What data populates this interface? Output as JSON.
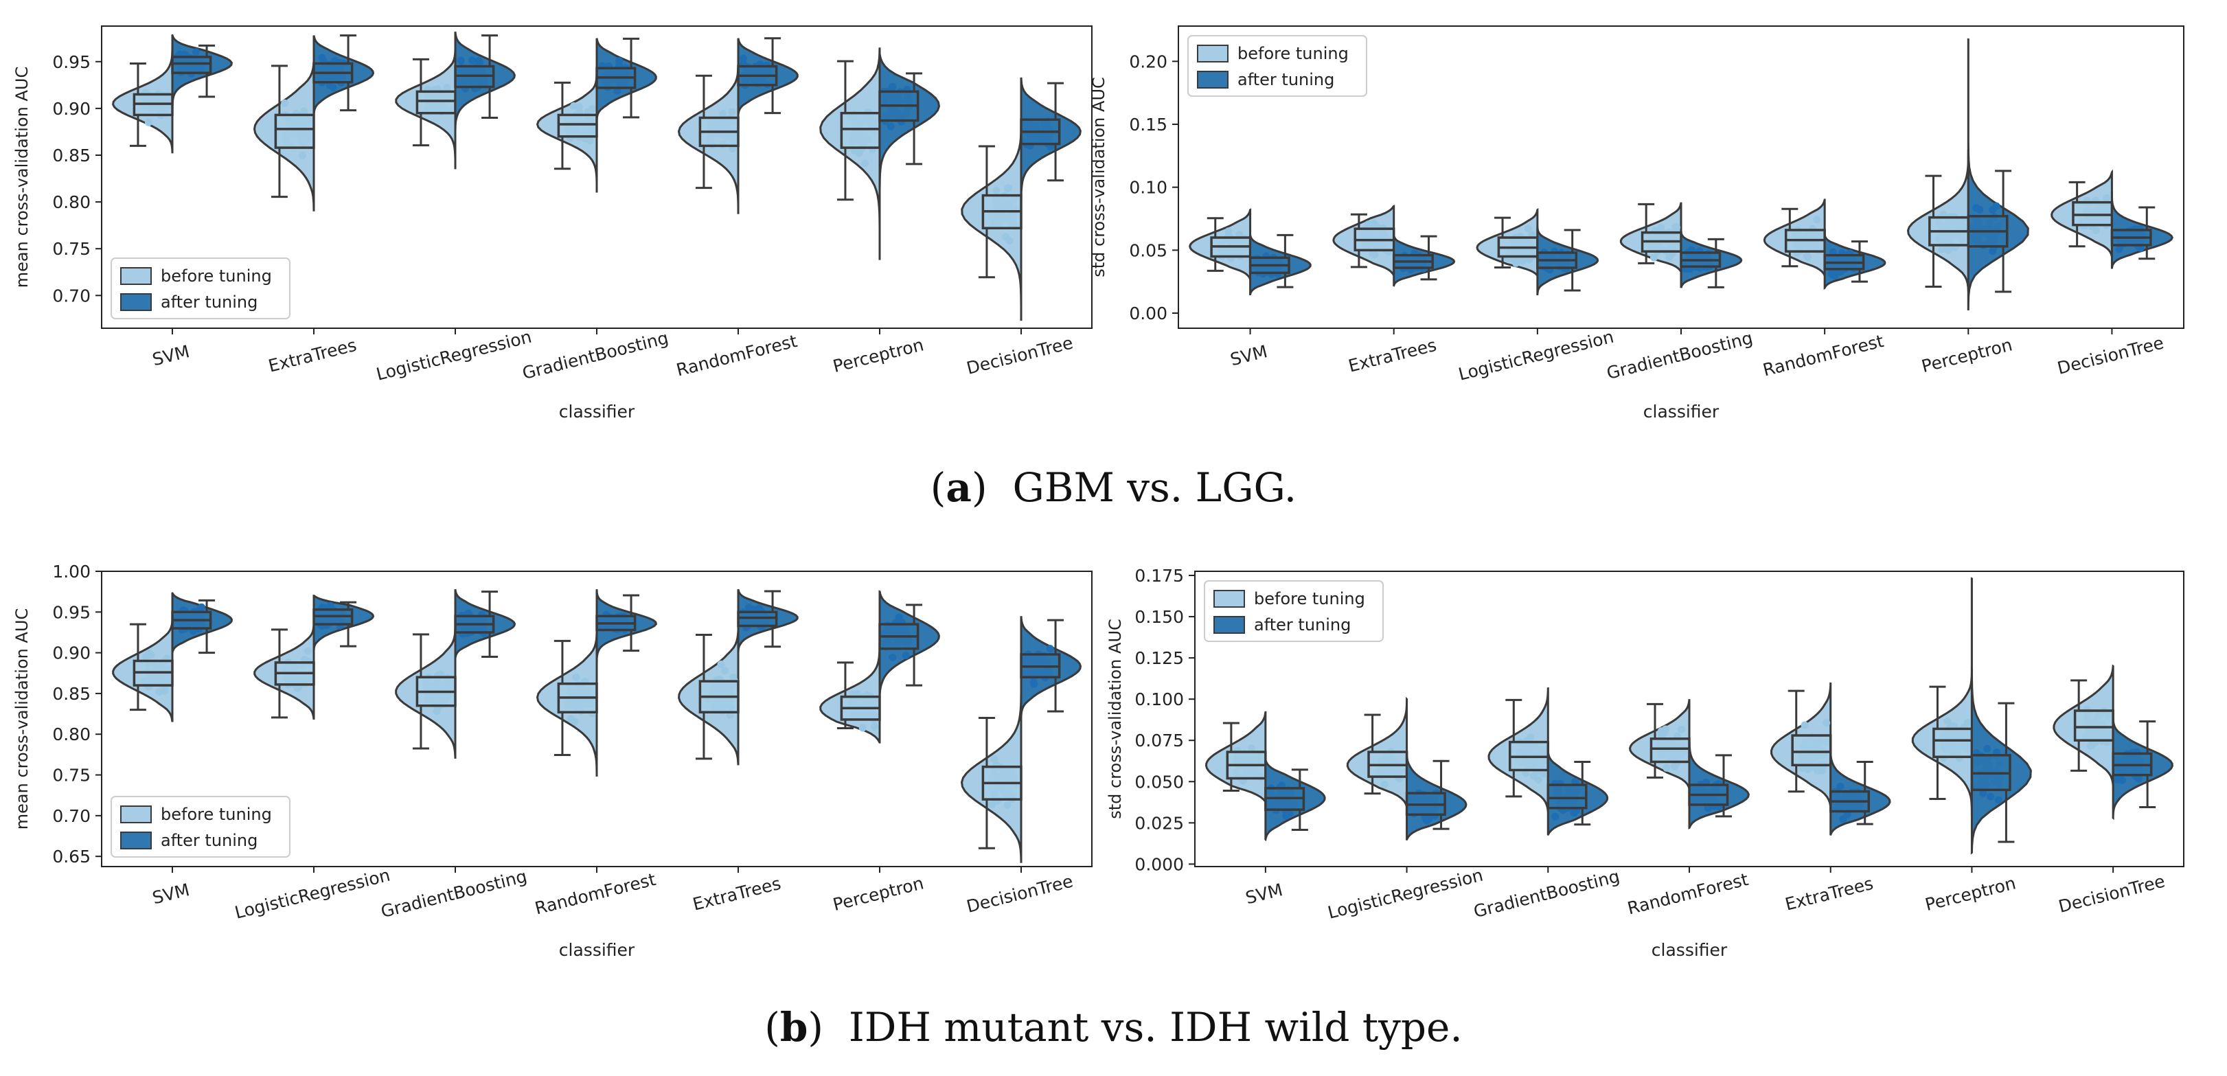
{
  "colors": {
    "before": "#a6cde5",
    "after": "#2f78b0",
    "before_points": "#98c6e3",
    "after_points": "#1f6db3",
    "line": "#3a3a3a"
  },
  "captions": {
    "a": {
      "label": "a",
      "text": "GBM vs. LGG."
    },
    "b": {
      "label": "b",
      "text": "IDH mutant vs. IDH wild type."
    }
  },
  "chart_data": [
    {
      "id": "a-mean",
      "type": "violin",
      "panel": "a",
      "title": "",
      "xlabel": "classifier",
      "ylabel": "mean cross-validation AUC",
      "ylim": [
        0.665,
        0.988
      ],
      "yticks": [
        "0.70",
        "0.75",
        "0.80",
        "0.85",
        "0.90",
        "0.95"
      ],
      "legend": {
        "position": "lower-left",
        "entries": [
          "before tuning",
          "after tuning"
        ]
      },
      "categories": [
        "SVM",
        "ExtraTrees",
        "LogisticRegression",
        "GradientBoosting",
        "RandomForest",
        "Perceptron",
        "DecisionTree"
      ],
      "series": [
        {
          "name": "before tuning",
          "values": [
            {
              "min": 0.852,
              "q1": 0.893,
              "median": 0.905,
              "q3": 0.915,
              "max": 0.968
            },
            {
              "min": 0.79,
              "q1": 0.858,
              "median": 0.878,
              "q3": 0.893,
              "max": 0.95
            },
            {
              "min": 0.835,
              "q1": 0.895,
              "median": 0.908,
              "q3": 0.918,
              "max": 0.965
            },
            {
              "min": 0.81,
              "q1": 0.87,
              "median": 0.883,
              "q3": 0.893,
              "max": 0.937
            },
            {
              "min": 0.787,
              "q1": 0.86,
              "median": 0.875,
              "q3": 0.89,
              "max": 0.948
            },
            {
              "min": 0.738,
              "q1": 0.858,
              "median": 0.878,
              "q3": 0.895,
              "max": 0.965
            },
            {
              "min": 0.673,
              "q1": 0.772,
              "median": 0.79,
              "q3": 0.807,
              "max": 0.89
            }
          ]
        },
        {
          "name": "after tuning",
          "values": [
            {
              "min": 0.888,
              "q1": 0.938,
              "median": 0.948,
              "q3": 0.955,
              "max": 0.978
            },
            {
              "min": 0.893,
              "q1": 0.928,
              "median": 0.938,
              "q3": 0.948,
              "max": 0.978
            },
            {
              "min": 0.873,
              "q1": 0.923,
              "median": 0.935,
              "q3": 0.945,
              "max": 0.982
            },
            {
              "min": 0.888,
              "q1": 0.922,
              "median": 0.933,
              "q3": 0.943,
              "max": 0.975
            },
            {
              "min": 0.893,
              "q1": 0.925,
              "median": 0.935,
              "q3": 0.945,
              "max": 0.975
            },
            {
              "min": 0.787,
              "q1": 0.887,
              "median": 0.903,
              "q3": 0.918,
              "max": 0.958
            },
            {
              "min": 0.79,
              "q1": 0.862,
              "median": 0.875,
              "q3": 0.888,
              "max": 0.933
            }
          ]
        }
      ]
    },
    {
      "id": "a-std",
      "type": "violin",
      "panel": "a",
      "title": "",
      "xlabel": "classifier",
      "ylabel": "std cross-validation AUC",
      "ylim": [
        -0.012,
        0.228
      ],
      "yticks": [
        "0.00",
        "0.05",
        "0.10",
        "0.15",
        "0.20"
      ],
      "legend": {
        "position": "top-left",
        "entries": [
          "before tuning",
          "after tuning"
        ]
      },
      "categories": [
        "SVM",
        "ExtraTrees",
        "LogisticRegression",
        "GradientBoosting",
        "RandomForest",
        "Perceptron",
        "DecisionTree"
      ],
      "series": [
        {
          "name": "before tuning",
          "values": [
            {
              "min": 0.027,
              "q1": 0.045,
              "median": 0.053,
              "q3": 0.06,
              "max": 0.082
            },
            {
              "min": 0.03,
              "q1": 0.05,
              "median": 0.058,
              "q3": 0.067,
              "max": 0.085
            },
            {
              "min": 0.03,
              "q1": 0.045,
              "median": 0.052,
              "q3": 0.06,
              "max": 0.082
            },
            {
              "min": 0.033,
              "q1": 0.049,
              "median": 0.057,
              "q3": 0.064,
              "max": 0.088
            },
            {
              "min": 0.03,
              "q1": 0.049,
              "median": 0.058,
              "q3": 0.066,
              "max": 0.09
            },
            {
              "min": 0.018,
              "q1": 0.054,
              "median": 0.065,
              "q3": 0.076,
              "max": 0.13
            },
            {
              "min": 0.045,
              "q1": 0.07,
              "median": 0.078,
              "q3": 0.088,
              "max": 0.112
            }
          ]
        },
        {
          "name": "after tuning",
          "values": [
            {
              "min": 0.015,
              "q1": 0.032,
              "median": 0.038,
              "q3": 0.044,
              "max": 0.062
            },
            {
              "min": 0.022,
              "q1": 0.036,
              "median": 0.041,
              "q3": 0.046,
              "max": 0.062
            },
            {
              "min": 0.015,
              "q1": 0.036,
              "median": 0.042,
              "q3": 0.048,
              "max": 0.068
            },
            {
              "min": 0.02,
              "q1": 0.037,
              "median": 0.042,
              "q3": 0.048,
              "max": 0.064
            },
            {
              "min": 0.02,
              "q1": 0.035,
              "median": 0.04,
              "q3": 0.046,
              "max": 0.062
            },
            {
              "min": 0.003,
              "q1": 0.053,
              "median": 0.065,
              "q3": 0.077,
              "max": 0.218
            },
            {
              "min": 0.036,
              "q1": 0.054,
              "median": 0.06,
              "q3": 0.066,
              "max": 0.096
            }
          ]
        }
      ]
    },
    {
      "id": "b-mean",
      "type": "violin",
      "panel": "b",
      "title": "",
      "xlabel": "classifier",
      "ylabel": "mean cross-validation AUC",
      "ylim": [
        0.6375,
        1.0
      ],
      "yticks": [
        "0.65",
        "0.70",
        "0.75",
        "0.80",
        "0.85",
        "0.90",
        "0.95",
        "1.00"
      ],
      "legend": {
        "position": "lower-left",
        "entries": [
          "before tuning",
          "after tuning"
        ]
      },
      "categories": [
        "SVM",
        "LogisticRegression",
        "GradientBoosting",
        "RandomForest",
        "ExtraTrees",
        "Perceptron",
        "DecisionTree"
      ],
      "series": [
        {
          "name": "before tuning",
          "values": [
            {
              "min": 0.815,
              "q1": 0.86,
              "median": 0.876,
              "q3": 0.89,
              "max": 0.94
            },
            {
              "min": 0.818,
              "q1": 0.861,
              "median": 0.875,
              "q3": 0.888,
              "max": 0.935
            },
            {
              "min": 0.77,
              "q1": 0.835,
              "median": 0.852,
              "q3": 0.87,
              "max": 0.93
            },
            {
              "min": 0.748,
              "q1": 0.827,
              "median": 0.845,
              "q3": 0.862,
              "max": 0.925
            },
            {
              "min": 0.762,
              "q1": 0.827,
              "median": 0.846,
              "q3": 0.865,
              "max": 0.927
            },
            {
              "min": 0.79,
              "q1": 0.818,
              "median": 0.832,
              "q3": 0.846,
              "max": 0.935
            },
            {
              "min": 0.642,
              "q1": 0.72,
              "median": 0.74,
              "q3": 0.76,
              "max": 0.862
            }
          ]
        },
        {
          "name": "after tuning",
          "values": [
            {
              "min": 0.9,
              "q1": 0.93,
              "median": 0.94,
              "q3": 0.95,
              "max": 0.973
            },
            {
              "min": 0.903,
              "q1": 0.935,
              "median": 0.945,
              "q3": 0.953,
              "max": 0.97
            },
            {
              "min": 0.893,
              "q1": 0.925,
              "median": 0.935,
              "q3": 0.945,
              "max": 0.978
            },
            {
              "min": 0.883,
              "q1": 0.928,
              "median": 0.936,
              "q3": 0.945,
              "max": 0.978
            },
            {
              "min": 0.898,
              "q1": 0.933,
              "median": 0.943,
              "q3": 0.95,
              "max": 0.978
            },
            {
              "min": 0.84,
              "q1": 0.905,
              "median": 0.92,
              "q3": 0.935,
              "max": 0.975
            },
            {
              "min": 0.822,
              "q1": 0.87,
              "median": 0.883,
              "q3": 0.898,
              "max": 0.945
            }
          ]
        }
      ]
    },
    {
      "id": "b-std",
      "type": "violin",
      "panel": "b",
      "title": "",
      "xlabel": "classifier",
      "ylabel": "std cross-validation AUC",
      "ylim": [
        -0.0015,
        0.1775
      ],
      "yticks": [
        "0.000",
        "0.025",
        "0.050",
        "0.075",
        "0.100",
        "0.125",
        "0.150",
        "0.175"
      ],
      "legend": {
        "position": "top-left",
        "entries": [
          "before tuning",
          "after tuning"
        ]
      },
      "categories": [
        "SVM",
        "LogisticRegression",
        "GradientBoosting",
        "RandomForest",
        "ExtraTrees",
        "Perceptron",
        "DecisionTree"
      ],
      "series": [
        {
          "name": "before tuning",
          "values": [
            {
              "min": 0.038,
              "q1": 0.052,
              "median": 0.06,
              "q3": 0.068,
              "max": 0.092
            },
            {
              "min": 0.035,
              "q1": 0.053,
              "median": 0.06,
              "q3": 0.068,
              "max": 0.1
            },
            {
              "min": 0.032,
              "q1": 0.057,
              "median": 0.065,
              "q3": 0.074,
              "max": 0.107
            },
            {
              "min": 0.046,
              "q1": 0.062,
              "median": 0.07,
              "q3": 0.076,
              "max": 0.1
            },
            {
              "min": 0.035,
              "q1": 0.06,
              "median": 0.068,
              "q3": 0.078,
              "max": 0.11
            },
            {
              "min": 0.03,
              "q1": 0.065,
              "median": 0.075,
              "q3": 0.082,
              "max": 0.118
            },
            {
              "min": 0.048,
              "q1": 0.075,
              "median": 0.083,
              "q3": 0.093,
              "max": 0.12
            }
          ]
        },
        {
          "name": "after tuning",
          "values": [
            {
              "min": 0.015,
              "q1": 0.033,
              "median": 0.04,
              "q3": 0.046,
              "max": 0.063
            },
            {
              "min": 0.015,
              "q1": 0.03,
              "median": 0.036,
              "q3": 0.043,
              "max": 0.068
            },
            {
              "min": 0.018,
              "q1": 0.034,
              "median": 0.04,
              "q3": 0.048,
              "max": 0.068
            },
            {
              "min": 0.022,
              "q1": 0.036,
              "median": 0.042,
              "q3": 0.048,
              "max": 0.08
            },
            {
              "min": 0.018,
              "q1": 0.032,
              "median": 0.038,
              "q3": 0.044,
              "max": 0.07
            },
            {
              "min": 0.007,
              "q1": 0.045,
              "median": 0.055,
              "q3": 0.066,
              "max": 0.173
            },
            {
              "min": 0.028,
              "q1": 0.054,
              "median": 0.06,
              "q3": 0.067,
              "max": 0.088
            }
          ]
        }
      ]
    }
  ]
}
